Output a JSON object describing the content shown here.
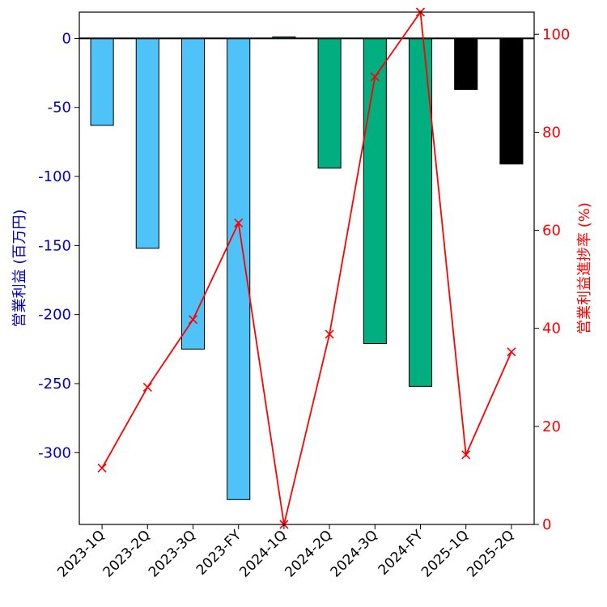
{
  "chart_data": {
    "type": "bar",
    "categories": [
      "2023-1Q",
      "2023-2Q",
      "2023-3Q",
      "2023-FY",
      "2024-1Q",
      "2024-2Q",
      "2024-3Q",
      "2024-FY",
      "2025-1Q",
      "2025-2Q"
    ],
    "series": [
      {
        "type": "bar",
        "axis": "left",
        "values": [
          -63,
          -152,
          -225,
          -334,
          1,
          -94,
          -221,
          -252,
          -37,
          -91
        ],
        "colors": [
          "#4fc3f7",
          "#4fc3f7",
          "#4fc3f7",
          "#4fc3f7",
          "#00ae7f",
          "#00ae7f",
          "#00ae7f",
          "#00ae7f",
          "#000000",
          "#000000"
        ]
      },
      {
        "type": "line",
        "axis": "right",
        "marker": "x",
        "color": "#ff0000",
        "values": [
          11.5,
          28,
          41.8,
          61.5,
          0,
          38.8,
          91.3,
          104.5,
          14.2,
          35.2
        ]
      }
    ],
    "ylabel": "営業利益 (百万円)",
    "ylabel_right": "営業利益進捗率 (%)",
    "ylim": [
      -352,
      19
    ],
    "ylim_right": [
      0,
      104.5
    ],
    "yticks": [
      0,
      -50,
      -100,
      -150,
      -200,
      -250,
      -300
    ],
    "yticks_right": [
      0,
      20,
      40,
      60,
      80,
      100
    ],
    "left_axis_color": "#0000cc",
    "right_axis_color": "#ff0000",
    "zero_line": true,
    "grid": false,
    "legend": "none"
  }
}
